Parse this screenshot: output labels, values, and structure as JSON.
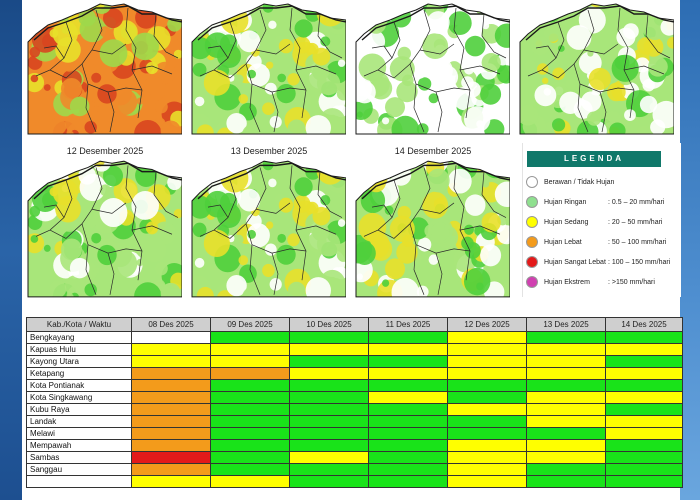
{
  "maps": {
    "row1": [
      {
        "caption": "",
        "colors": [
          "#d8451f",
          "#f08a2a",
          "#e8e02a",
          "#9ed84a"
        ]
      },
      {
        "caption": "",
        "colors": [
          "#ffffff",
          "#a8e67a",
          "#4fcf3c",
          "#e8e02a"
        ]
      },
      {
        "caption": "",
        "colors": [
          "#ffffff",
          "#ffffff",
          "#a8e67a",
          "#4fcf3c"
        ]
      },
      {
        "caption": "",
        "colors": [
          "#ffffff",
          "#a8e67a",
          "#4fcf3c",
          "#e8e02a"
        ]
      }
    ],
    "row2": [
      {
        "caption": "12 Desember 2025",
        "colors": [
          "#4fcf3c",
          "#a8e67a",
          "#e8e02a",
          "#ffffff"
        ]
      },
      {
        "caption": "13 Desember 2025",
        "colors": [
          "#ffffff",
          "#a8e67a",
          "#4fcf3c",
          "#e8e02a"
        ]
      },
      {
        "caption": "14 Desember 2025",
        "colors": [
          "#4fcf3c",
          "#a8e67a",
          "#e8e02a",
          "#ffffff"
        ]
      }
    ]
  },
  "legend": {
    "title": "LEGENDA",
    "items": [
      {
        "label": "Berawan / Tidak Hujan",
        "range": "",
        "color": "#ffffff"
      },
      {
        "label": "Hujan Ringan",
        "range": ": 0.5 – 20 mm/hari",
        "color": "#8fe08f"
      },
      {
        "label": "Hujan Sedang",
        "range": ": 20 – 50 mm/hari",
        "color": "#ffff00"
      },
      {
        "label": "Hujan Lebat",
        "range": ": 50 – 100 mm/hari",
        "color": "#f39b1b"
      },
      {
        "label": "Hujan Sangat Lebat",
        "range": ": 100 – 150 mm/hari",
        "color": "#e31a1a"
      },
      {
        "label": "Hujan Ekstrem",
        "range": ": >150 mm/hari",
        "color": "#d040b0"
      }
    ]
  },
  "table": {
    "header": [
      "Kab./Kota / Waktu",
      "08 Des 2025",
      "09 Des 2025",
      "10 Des 2025",
      "11 Des 2025",
      "12 Des 2025",
      "13 Des 2025",
      "14 Des 2025"
    ],
    "category_colors": {
      "g": "#19e319",
      "y": "#ffff00",
      "o": "#f39b1b",
      "r": "#e31a1a",
      "w": "#ffffff"
    },
    "rows": [
      {
        "region": "Bengkayang",
        "cells": [
          "w",
          "g",
          "g",
          "g",
          "y",
          "g",
          "g"
        ]
      },
      {
        "region": "Kapuas Hulu",
        "cells": [
          "y",
          "y",
          "y",
          "y",
          "y",
          "y",
          "y"
        ]
      },
      {
        "region": "Kayong Utara",
        "cells": [
          "y",
          "y",
          "g",
          "g",
          "y",
          "y",
          "g"
        ]
      },
      {
        "region": "Ketapang",
        "cells": [
          "o",
          "o",
          "y",
          "y",
          "y",
          "y",
          "y"
        ]
      },
      {
        "region": "Kota Pontianak",
        "cells": [
          "o",
          "g",
          "g",
          "g",
          "g",
          "g",
          "g"
        ]
      },
      {
        "region": "Kota Singkawang",
        "cells": [
          "o",
          "g",
          "g",
          "y",
          "g",
          "y",
          "y"
        ]
      },
      {
        "region": "Kubu Raya",
        "cells": [
          "o",
          "g",
          "g",
          "g",
          "y",
          "y",
          "g"
        ]
      },
      {
        "region": "Landak",
        "cells": [
          "o",
          "g",
          "g",
          "g",
          "g",
          "y",
          "y"
        ]
      },
      {
        "region": "Melawi",
        "cells": [
          "o",
          "g",
          "g",
          "g",
          "g",
          "g",
          "y"
        ]
      },
      {
        "region": "Mempawah",
        "cells": [
          "o",
          "g",
          "g",
          "g",
          "y",
          "y",
          "g"
        ]
      },
      {
        "region": "Sambas",
        "cells": [
          "r",
          "g",
          "y",
          "g",
          "y",
          "y",
          "g"
        ]
      },
      {
        "region": "Sanggau",
        "cells": [
          "o",
          "g",
          "g",
          "g",
          "y",
          "g",
          "g"
        ]
      },
      {
        "region": "",
        "cells": [
          "y",
          "y",
          "g",
          "g",
          "y",
          "g",
          "g"
        ]
      }
    ]
  }
}
